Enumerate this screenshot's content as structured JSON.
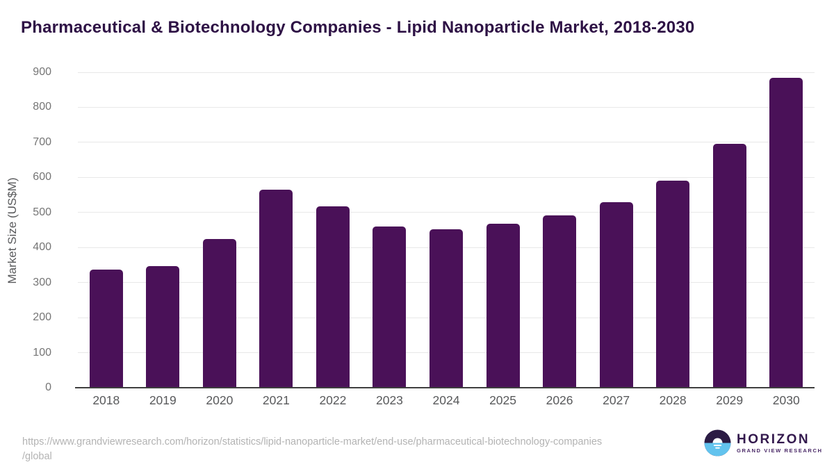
{
  "title": "Pharmaceutical & Biotechnology Companies - Lipid Nanoparticle Market, 2018-2030",
  "chart_data": {
    "type": "bar",
    "categories": [
      "2018",
      "2019",
      "2020",
      "2021",
      "2022",
      "2023",
      "2024",
      "2025",
      "2026",
      "2027",
      "2028",
      "2029",
      "2030"
    ],
    "values": [
      337,
      347,
      425,
      566,
      518,
      460,
      452,
      468,
      492,
      530,
      590,
      696,
      884
    ],
    "title": "Pharmaceutical & Biotechnology Companies - Lipid Nanoparticle Market, 2018-2030",
    "xlabel": "",
    "ylabel": "Market Size (US$M)",
    "ylim": [
      0,
      900
    ],
    "ytick_step": 100,
    "grid": true,
    "legend": false,
    "bar_color": "#4A1158",
    "gridline_color": "#E8E8E8",
    "axis_line_color": "#3F3F3F",
    "ytick_label_color": "#757575",
    "xtick_label_color": "#58595B"
  },
  "footer": {
    "source_url_line1": "https://www.grandviewresearch.com/horizon/statistics/lipid-nanoparticle-market/end-use/pharmaceutical-biotechnology-companies",
    "source_url_line2": "/global",
    "logo": {
      "name": "HORIZON",
      "subtitle": "GRAND VIEW RESEARCH",
      "icon": "horizon-sunrise-icon",
      "icon_dark_color": "#2B1B44",
      "icon_blue_color": "#62C3EE",
      "text_color": "#33194D"
    }
  }
}
